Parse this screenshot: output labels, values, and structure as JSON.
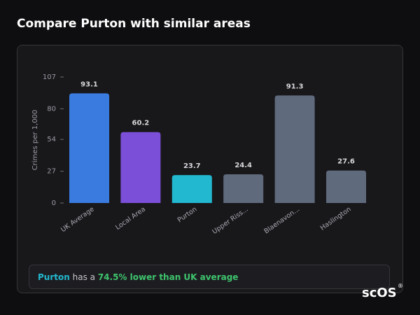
{
  "page_title": "Compare Purton with similar areas",
  "chart_data": {
    "type": "bar",
    "y_label": "Crimes per 1,000",
    "categories": [
      "UK Average",
      "Local Area",
      "Purton",
      "Upper Riss...",
      "Blaenavon...",
      "Haslington"
    ],
    "values": [
      93.1,
      60.2,
      23.7,
      24.4,
      91.3,
      27.6
    ],
    "colors": [
      "#3a7be0",
      "#7c4fd8",
      "#22b8cf",
      "#5f6a7c",
      "#5f6a7c",
      "#5f6a7c"
    ],
    "ylim": [
      0,
      107
    ],
    "yticks": [
      0,
      27,
      54,
      80,
      107
    ],
    "grid": false
  },
  "summary": {
    "area": "Purton",
    "text": "has a",
    "highlight": "74.5% lower than UK average"
  },
  "logo": "scOS",
  "logo_mark": "®"
}
